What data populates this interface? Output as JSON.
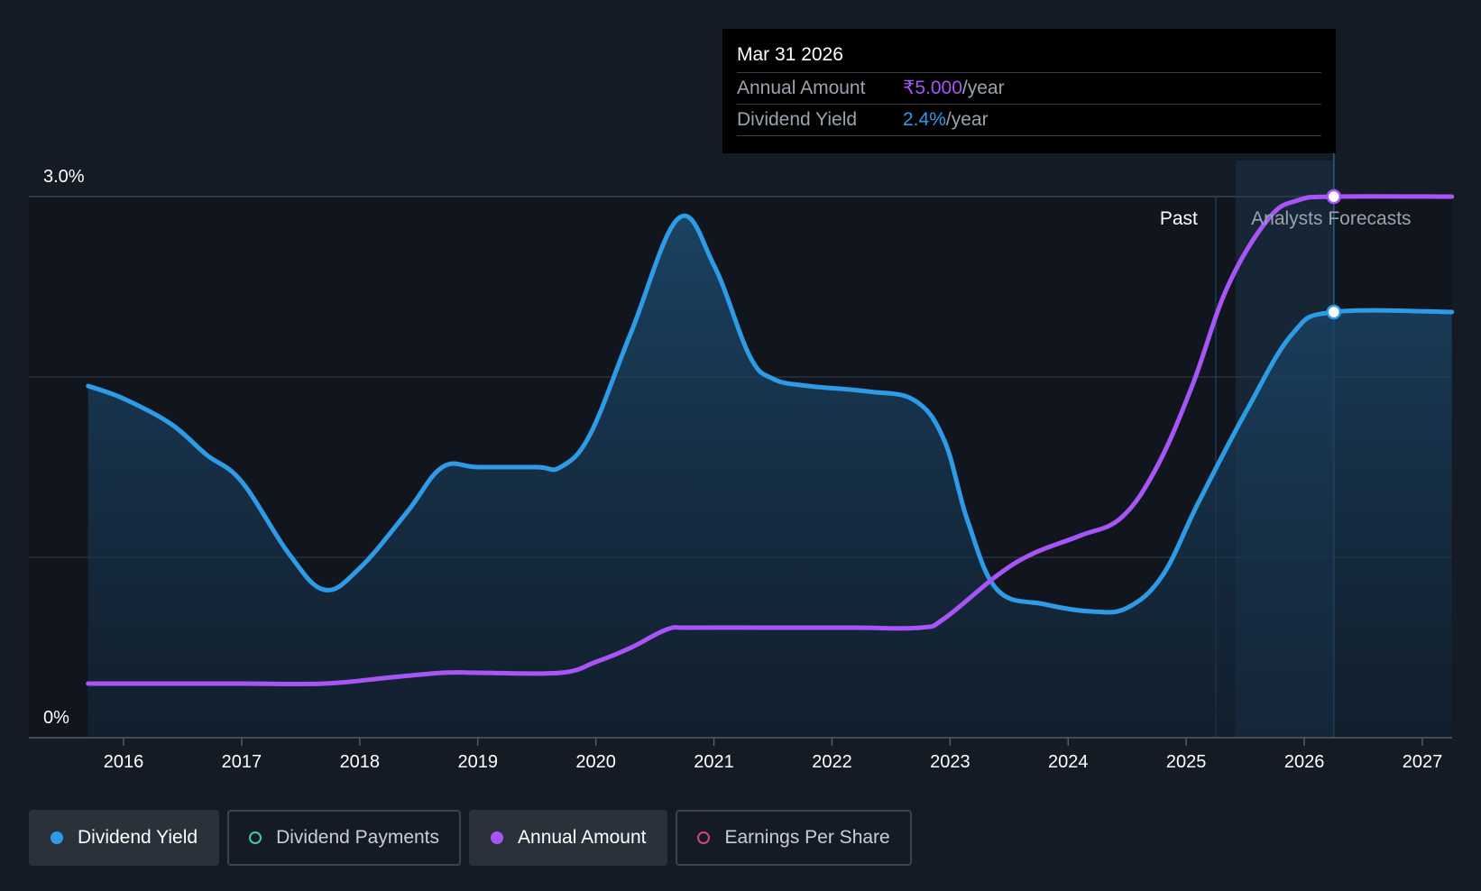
{
  "chart_data": {
    "type": "line",
    "y_axis": {
      "top_label": "3.0%",
      "bottom_label": "0%",
      "ylim": [
        0,
        3.0
      ]
    },
    "x_ticks": [
      "2016",
      "2017",
      "2018",
      "2019",
      "2020",
      "2021",
      "2022",
      "2023",
      "2024",
      "2025",
      "2026",
      "2027"
    ],
    "regions": {
      "past_label": "Past",
      "forecast_label": "Analysts Forecasts",
      "past_end": 2025.25,
      "forecast_start": 2025.42,
      "forecast_end": 2026.25
    },
    "series": [
      {
        "name": "Dividend Yield",
        "color": "#2e9be6",
        "points": [
          [
            2015.7,
            1.95
          ],
          [
            2016.0,
            1.88
          ],
          [
            2016.4,
            1.74
          ],
          [
            2016.7,
            1.57
          ],
          [
            2017.0,
            1.42
          ],
          [
            2017.4,
            1.02
          ],
          [
            2017.7,
            0.82
          ],
          [
            2018.0,
            0.94
          ],
          [
            2018.4,
            1.25
          ],
          [
            2018.7,
            1.5
          ],
          [
            2019.0,
            1.5
          ],
          [
            2019.5,
            1.5
          ],
          [
            2019.7,
            1.5
          ],
          [
            2019.95,
            1.68
          ],
          [
            2020.3,
            2.25
          ],
          [
            2020.7,
            2.88
          ],
          [
            2021.0,
            2.62
          ],
          [
            2021.3,
            2.12
          ],
          [
            2021.5,
            1.99
          ],
          [
            2021.8,
            1.95
          ],
          [
            2022.3,
            1.92
          ],
          [
            2022.7,
            1.87
          ],
          [
            2022.95,
            1.65
          ],
          [
            2023.15,
            1.2
          ],
          [
            2023.4,
            0.82
          ],
          [
            2023.8,
            0.74
          ],
          [
            2024.2,
            0.7
          ],
          [
            2024.5,
            0.72
          ],
          [
            2024.8,
            0.9
          ],
          [
            2025.1,
            1.3
          ],
          [
            2025.5,
            1.8
          ],
          [
            2025.9,
            2.24
          ],
          [
            2026.25,
            2.36
          ],
          [
            2027.25,
            2.36
          ]
        ]
      },
      {
        "name": "Annual Amount",
        "color": "#a855f7",
        "points": [
          [
            2015.7,
            0.3
          ],
          [
            2016.0,
            0.3
          ],
          [
            2016.5,
            0.3
          ],
          [
            2017.0,
            0.3
          ],
          [
            2017.7,
            0.3
          ],
          [
            2018.2,
            0.33
          ],
          [
            2018.7,
            0.36
          ],
          [
            2019.0,
            0.36
          ],
          [
            2019.7,
            0.36
          ],
          [
            2020.0,
            0.42
          ],
          [
            2020.3,
            0.5
          ],
          [
            2020.6,
            0.6
          ],
          [
            2020.8,
            0.61
          ],
          [
            2021.5,
            0.61
          ],
          [
            2022.2,
            0.61
          ],
          [
            2022.75,
            0.61
          ],
          [
            2022.95,
            0.66
          ],
          [
            2023.4,
            0.9
          ],
          [
            2023.7,
            1.02
          ],
          [
            2024.1,
            1.12
          ],
          [
            2024.45,
            1.22
          ],
          [
            2024.75,
            1.5
          ],
          [
            2025.05,
            1.95
          ],
          [
            2025.35,
            2.5
          ],
          [
            2025.7,
            2.88
          ],
          [
            2025.95,
            2.98
          ],
          [
            2026.25,
            3.0
          ],
          [
            2027.25,
            3.0
          ]
        ]
      }
    ],
    "highlight_x": 2026.25
  },
  "tooltip": {
    "date": "Mar 31 2026",
    "row1_label": "Annual Amount",
    "row1_value": "₹5.000",
    "row1_unit": "/year",
    "row2_label": "Dividend Yield",
    "row2_value": "2.4%",
    "row2_unit": "/year"
  },
  "legend": [
    {
      "label": "Dividend Yield",
      "color": "#2e9be6",
      "active": true
    },
    {
      "label": "Dividend Payments",
      "color": "#3fc8b8",
      "active": false
    },
    {
      "label": "Annual Amount",
      "color": "#a855f7",
      "active": true
    },
    {
      "label": "Earnings Per Share",
      "color": "#d6457d",
      "active": false
    }
  ]
}
